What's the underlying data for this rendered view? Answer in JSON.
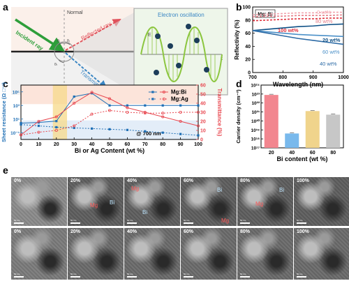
{
  "panel_a": {
    "letter": "a",
    "labels": {
      "normal": "Normal",
      "incident": "Incident ray",
      "reflected": "Reflected ray",
      "transmitted": "Transmitted ray",
      "oscillation": "Electron oscillation",
      "e_field": "E",
      "k_vec": "k",
      "theta_i": "θᵢ",
      "theta_r": "θᵣ",
      "theta_t": "θₜ"
    },
    "colors": {
      "incident": "#2e9e3a",
      "reflected": "#e0505a",
      "transmitted": "#3a86c4",
      "wave": "#8cc63f"
    }
  },
  "panel_b": {
    "letter": "b"
  },
  "panel_c": {
    "letter": "c",
    "annotation": "@ 700 nm"
  },
  "panel_d": {
    "letter": "d"
  },
  "panel_e": {
    "letter": "e",
    "scale_label": "50 nm",
    "row1": [
      {
        "label": "0%"
      },
      {
        "label": "20%",
        "regions": [
          "Mg",
          "Bi"
        ]
      },
      {
        "label": "40%",
        "regions": [
          "Mg",
          "Bi"
        ]
      },
      {
        "label": "60%",
        "regions": [
          "Bi",
          "Mg"
        ]
      },
      {
        "label": "80%",
        "regions": [
          "Mg",
          "Bi"
        ]
      },
      {
        "label": "100%"
      }
    ],
    "row2": [
      {
        "label": "0%"
      },
      {
        "label": "20%"
      },
      {
        "label": "40%"
      },
      {
        "label": "60%"
      },
      {
        "label": "80%"
      },
      {
        "label": "100%"
      }
    ]
  },
  "chart_data": [
    {
      "panel": "b",
      "type": "line",
      "xlabel": "Wavelength (nm)",
      "ylabel": "Reflectivity (%)",
      "xlim": [
        700,
        1000
      ],
      "ylim": [
        0,
        100
      ],
      "xticks": [
        "700",
        "800",
        "900",
        "1000"
      ],
      "yticks": [
        "0",
        "20",
        "40",
        "60",
        "80",
        "100"
      ],
      "box_label": "Mg: Bi",
      "x": [
        700,
        750,
        800,
        850,
        900,
        950,
        1000
      ],
      "series": [
        {
          "name": "0 wt%",
          "values": [
            88,
            89,
            90,
            91,
            91,
            92,
            92
          ],
          "color": "#f2a3ad",
          "style": "dash"
        },
        {
          "name": "80 wt%",
          "values": [
            85,
            86,
            86,
            87,
            87,
            87,
            88
          ],
          "color": "#e57d88",
          "style": "dash"
        },
        {
          "name": "100 wt%",
          "values": [
            79,
            80,
            81,
            82,
            82,
            83,
            83
          ],
          "color": "#e0303c",
          "style": "dash"
        },
        {
          "name": "20 wt%",
          "values": [
            64,
            66,
            68,
            70,
            71,
            73,
            74
          ],
          "color": "#0d4f85",
          "style": "solid"
        },
        {
          "name": "60 wt%",
          "values": [
            64,
            62,
            60,
            58,
            57,
            56,
            55
          ],
          "color": "#4b90c8",
          "style": "solid"
        },
        {
          "name": "40 wt%",
          "values": [
            64,
            60,
            56,
            52,
            49,
            46,
            43
          ],
          "color": "#2c6aa5",
          "style": "solid"
        }
      ]
    },
    {
      "panel": "c",
      "type": "line",
      "xlabel": "Bi or Ag Content (wt %)",
      "ylabel_left": "Sheet resistance (Ω □⁻¹)",
      "ylabel_right": "Transmittance (%)",
      "x": [
        0,
        10,
        20,
        30,
        40,
        50,
        60,
        70,
        80,
        90,
        100
      ],
      "xticks": [
        "0",
        "10",
        "20",
        "30",
        "40",
        "50",
        "60",
        "70",
        "80",
        "90",
        "100"
      ],
      "ylim_right": [
        0,
        60
      ],
      "yticks_right": [
        "0",
        "10",
        "20",
        "30",
        "40",
        "50",
        "60"
      ],
      "yticks_left": [
        "10⁻¹",
        "10¹",
        "10³",
        "10⁵"
      ],
      "ylim_left_log": [
        -2,
        6
      ],
      "legend": [
        "Mg:Bi",
        "Mg:Ag"
      ],
      "series": [
        {
          "name": "Mg:Bi",
          "axis": "left",
          "style": "solid",
          "color": "#1f6fb5",
          "log_values": [
            0.4,
            0.5,
            0.7,
            4.3,
            4.8,
            3.0,
            3.0,
            3.0,
            3.0,
            3.0,
            3.0
          ]
        },
        {
          "name": "Mg:Bi",
          "axis": "right",
          "style": "solid",
          "color": "#e8474f",
          "values": [
            5,
            20,
            25,
            40,
            52,
            45,
            35,
            30,
            25,
            20,
            15
          ]
        },
        {
          "name": "Mg:Ag",
          "axis": "left",
          "style": "dot",
          "color": "#1f6fb5",
          "log_values": [
            0.2,
            0.0,
            -0.2,
            -0.3,
            -0.4,
            -0.5,
            -0.6,
            -0.8,
            -1.0,
            -1.2,
            -1.4
          ]
        },
        {
          "name": "Mg:Ag",
          "axis": "right",
          "style": "dot",
          "color": "#e8474f",
          "values": [
            5,
            8,
            10,
            15,
            28,
            32,
            30,
            29,
            29,
            30,
            30
          ]
        }
      ]
    },
    {
      "panel": "d",
      "type": "bar",
      "xlabel": "Bi content (wt %)",
      "ylabel": "Carrier density (cm⁻³)",
      "categories": [
        "20",
        "40",
        "60",
        "80"
      ],
      "log_values": [
        22.9,
        18.6,
        21.1,
        20.7
      ],
      "colors": [
        "#f2868f",
        "#79b9ec",
        "#f0d48c",
        "#c7c7c7"
      ],
      "ylim_log": [
        17,
        24
      ],
      "yticks": [
        "10¹⁷",
        "10¹⁸",
        "10¹⁹",
        "10²⁰",
        "10²¹",
        "10²²",
        "10²³",
        "10²⁴"
      ]
    }
  ]
}
